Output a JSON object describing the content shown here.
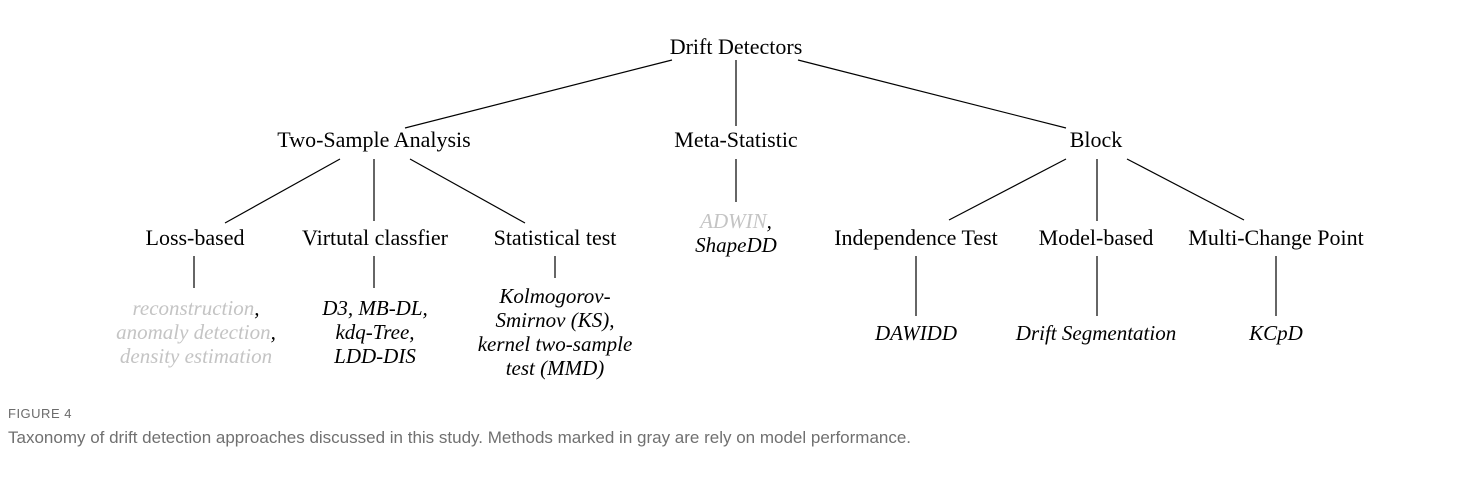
{
  "diagram": {
    "root": "Drift Detectors",
    "categories": {
      "two_sample": "Two-Sample Analysis",
      "meta_statistic": "Meta-Statistic",
      "block": "Block"
    },
    "subcategories": {
      "loss_based": "Loss-based",
      "virtual_classifier": "Virtutal classfier",
      "statistical_test": "Statistical test",
      "independence_test": "Independence Test",
      "model_based": "Model-based",
      "multi_change_point": "Multi-Change Point"
    },
    "methods": {
      "loss_based": [
        [
          {
            "text": "reconstruction",
            "gray": true
          },
          {
            "text": ",",
            "gray": false
          }
        ],
        [
          {
            "text": "anomaly detection",
            "gray": true
          },
          {
            "text": ",",
            "gray": false
          }
        ],
        [
          {
            "text": "density estimation",
            "gray": true
          }
        ]
      ],
      "virtual_classifier": [
        [
          {
            "text": "D3, MB-DL,",
            "gray": false
          }
        ],
        [
          {
            "text": "kdq-Tree,",
            "gray": false
          }
        ],
        [
          {
            "text": "LDD-DIS",
            "gray": false
          }
        ]
      ],
      "statistical_test": [
        [
          {
            "text": "Kolmogorov-",
            "gray": false
          }
        ],
        [
          {
            "text": "Smirnov (KS),",
            "gray": false
          }
        ],
        [
          {
            "text": "kernel two-sample",
            "gray": false
          }
        ],
        [
          {
            "text": "test (MMD)",
            "gray": false
          }
        ]
      ],
      "meta_statistic": [
        [
          {
            "text": "ADWIN",
            "gray": true
          },
          {
            "text": ",",
            "gray": false
          }
        ],
        [
          {
            "text": "ShapeDD",
            "gray": false
          }
        ]
      ],
      "independence_test": [
        [
          {
            "text": "DAWIDD",
            "gray": false
          }
        ]
      ],
      "model_based": [
        [
          {
            "text": "Drift Segmentation",
            "gray": false
          }
        ]
      ],
      "multi_change_point": [
        [
          {
            "text": "KCpD",
            "gray": false
          }
        ]
      ]
    },
    "colors": {
      "text": "#000000",
      "gray_method": "#c4c4c4",
      "edge": "#000000",
      "caption": "#707070"
    }
  },
  "caption": {
    "label": "FIGURE 4",
    "text": "Taxonomy of drift detection approaches discussed in this study. Methods marked in gray are rely on model performance."
  }
}
